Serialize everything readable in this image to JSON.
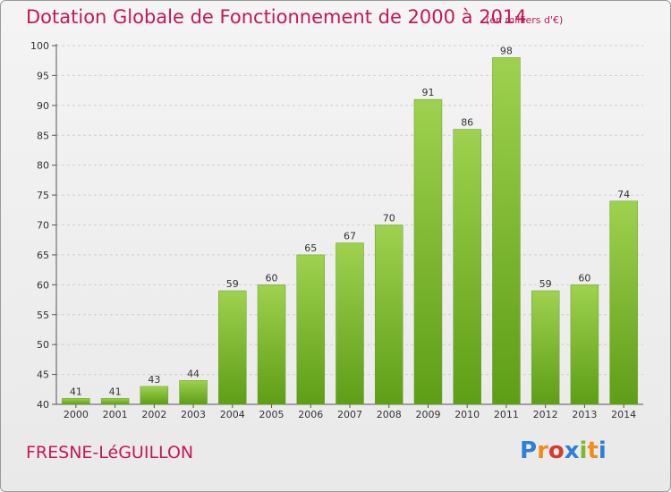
{
  "title": "Dotation Globale de Fonctionnement de 2000 à 2014",
  "unit_note": "(en milliers d'€)",
  "commune": "FRESNE-LéGUILLON",
  "logo": {
    "letters": [
      "P",
      "r",
      "o",
      "x",
      "i",
      "t",
      "i"
    ],
    "colors": [
      "#2e7fd6",
      "#f28c1e",
      "#d63b2f",
      "#2e7fd6",
      "#7ab929",
      "#f28c1e",
      "#2e7fd6"
    ]
  },
  "colors": {
    "accent": "#c2185b",
    "bar_top": "#9ed14f",
    "bar_bottom": "#5e9e16",
    "grid": "#cfcfcf",
    "text": "#333333"
  },
  "chart_data": {
    "type": "bar",
    "categories": [
      "2000",
      "2001",
      "2002",
      "2003",
      "2004",
      "2005",
      "2006",
      "2007",
      "2008",
      "2009",
      "2010",
      "2011",
      "2012",
      "2013",
      "2014"
    ],
    "values": [
      41,
      41,
      43,
      44,
      59,
      60,
      65,
      67,
      70,
      91,
      86,
      98,
      59,
      60,
      74
    ],
    "ylim": [
      40,
      100
    ],
    "yticks": [
      40,
      45,
      50,
      55,
      60,
      65,
      70,
      75,
      80,
      85,
      90,
      95,
      100
    ],
    "grid": true,
    "data_labels": true
  }
}
